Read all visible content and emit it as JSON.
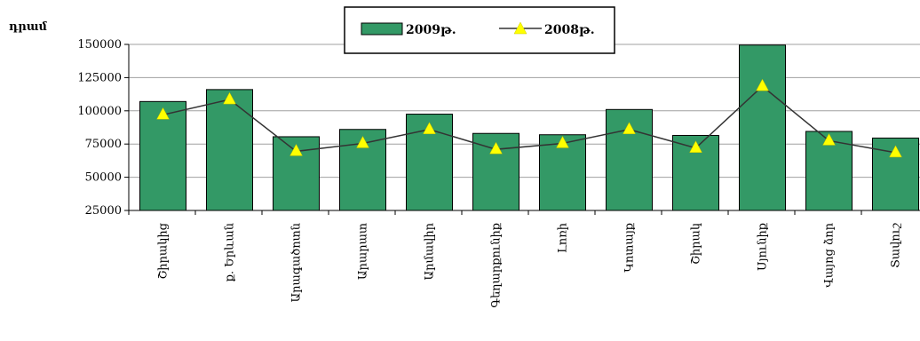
{
  "chart_data": {
    "type": "bar",
    "ylabel": "դրամ",
    "ylim": [
      25000,
      150000
    ],
    "yticks": [
      25000,
      50000,
      75000,
      100000,
      125000,
      150000
    ],
    "grid": true,
    "legend_position": "top-center",
    "categories": [
      "Շիրակից",
      "ք. Երևան",
      "Արագածոտն",
      "Արարատ",
      "Արմավիր",
      "Գեղարքունիք",
      "Լոռի",
      "Կոտայք",
      "Շիրակ",
      "Սյունիք",
      "Վայոց ձոր",
      "Տավուշ"
    ],
    "series": [
      {
        "name": "2009թ.",
        "type": "bar",
        "color": "#339966",
        "values": [
          107000,
          116000,
          80500,
          86000,
          97500,
          83000,
          82000,
          101000,
          81500,
          149500,
          84500,
          79500
        ]
      },
      {
        "name": "2008թ.",
        "type": "line",
        "color": "#ffff00",
        "values": [
          97000,
          108500,
          69500,
          75500,
          86000,
          71000,
          75500,
          86000,
          72000,
          118500,
          77500,
          68500
        ]
      }
    ]
  }
}
